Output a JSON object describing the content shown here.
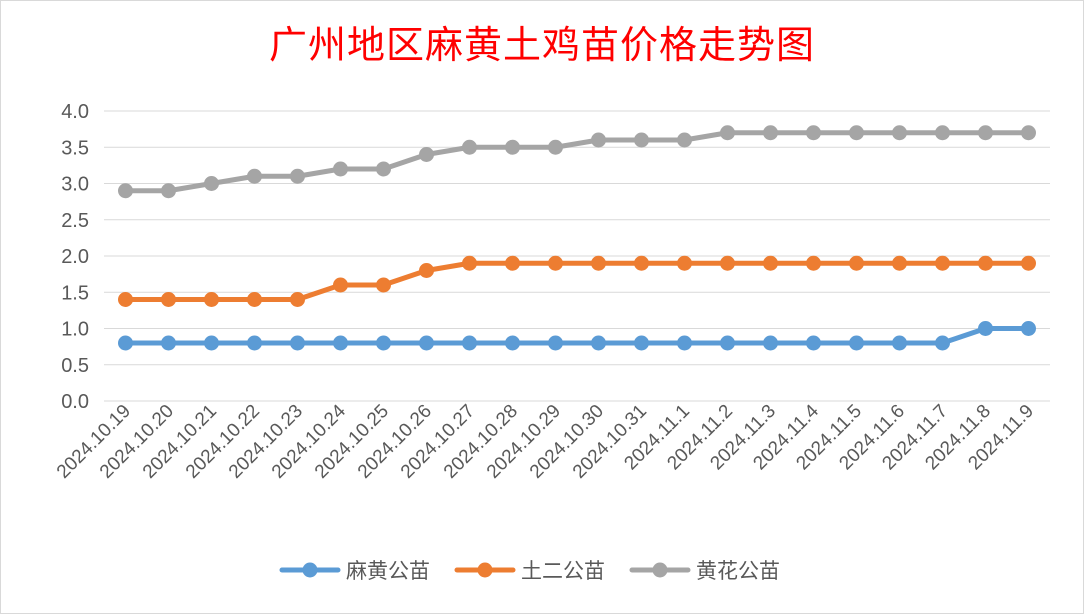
{
  "chart_data": {
    "type": "line",
    "title": "广州地区麻黄土鸡苗价格走势图",
    "xlabel": "",
    "ylabel": "",
    "ylim": [
      0,
      4.0
    ],
    "yticks": [
      "0.0",
      "0.5",
      "1.0",
      "1.5",
      "2.0",
      "2.5",
      "3.0",
      "3.5",
      "4.0"
    ],
    "grid": true,
    "legend_position": "bottom",
    "categories": [
      "2024.10.19",
      "2024.10.20",
      "2024.10.21",
      "2024.10.22",
      "2024.10.23",
      "2024.10.24",
      "2024.10.25",
      "2024.10.26",
      "2024.10.27",
      "2024.10.28",
      "2024.10.29",
      "2024.10.30",
      "2024.10.31",
      "2024.11.1",
      "2024.11.2",
      "2024.11.3",
      "2024.11.4",
      "2024.11.5",
      "2024.11.6",
      "2024.11.7",
      "2024.11.8",
      "2024.11.9"
    ],
    "series": [
      {
        "name": "麻黄公苗",
        "color": "#5b9bd5",
        "values": [
          0.8,
          0.8,
          0.8,
          0.8,
          0.8,
          0.8,
          0.8,
          0.8,
          0.8,
          0.8,
          0.8,
          0.8,
          0.8,
          0.8,
          0.8,
          0.8,
          0.8,
          0.8,
          0.8,
          0.8,
          1.0,
          1.0
        ]
      },
      {
        "name": "土二公苗",
        "color": "#ed7d31",
        "values": [
          1.4,
          1.4,
          1.4,
          1.4,
          1.4,
          1.6,
          1.6,
          1.8,
          1.9,
          1.9,
          1.9,
          1.9,
          1.9,
          1.9,
          1.9,
          1.9,
          1.9,
          1.9,
          1.9,
          1.9,
          1.9,
          1.9
        ]
      },
      {
        "name": "黄花公苗",
        "color": "#a5a5a5",
        "values": [
          2.9,
          2.9,
          3.0,
          3.1,
          3.1,
          3.2,
          3.2,
          3.4,
          3.5,
          3.5,
          3.5,
          3.6,
          3.6,
          3.6,
          3.7,
          3.7,
          3.7,
          3.7,
          3.7,
          3.7,
          3.7,
          3.7
        ]
      }
    ]
  }
}
